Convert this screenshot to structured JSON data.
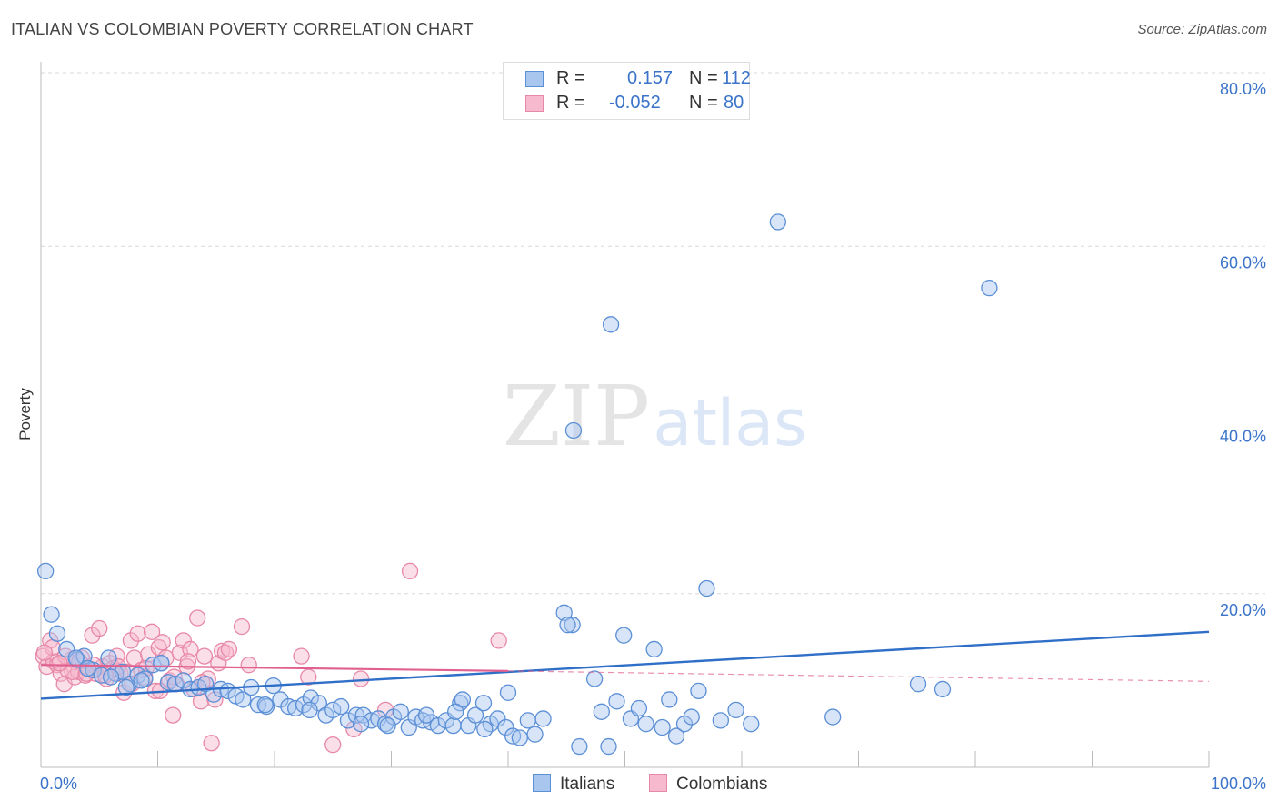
{
  "header": {
    "title": "ITALIAN VS COLOMBIAN POVERTY CORRELATION CHART",
    "source": "Source: ZipAtlas.com"
  },
  "watermark": {
    "zip": "ZIP",
    "atlas": "atlas"
  },
  "legend": {
    "italians": {
      "r_label": "R =",
      "r_value": "0.157",
      "n_label": "N =",
      "n_value": "112"
    },
    "colombians": {
      "r_label": "R =",
      "r_value": "-0.052",
      "n_label": "N =",
      "n_value": "80"
    }
  },
  "colors": {
    "italians_fill": "#a9c6ef",
    "italians_stroke": "#5b8fd6",
    "italians_line": "#2f6fc8",
    "colombians_fill": "#f6b9cd",
    "colombians_stroke": "#e888a8",
    "colombians_line": "#e0618f",
    "axis_label": "#3a73c9",
    "grid": "#d8d8d8"
  },
  "chart_data": {
    "type": "scatter",
    "title": "ITALIAN VS COLOMBIAN POVERTY CORRELATION CHART",
    "xlabel": "",
    "ylabel": "Poverty",
    "xlim": [
      0,
      100
    ],
    "ylim": [
      0,
      80
    ],
    "x_tick_labels": [
      "0.0%",
      "100.0%"
    ],
    "y_ticks": [
      20,
      40,
      60,
      80
    ],
    "y_tick_labels": [
      "20.0%",
      "40.0%",
      "60.0%",
      "80.0%"
    ],
    "grid": true,
    "legend_position": "top-center",
    "series": [
      {
        "name": "Italians",
        "r": 0.157,
        "n": 112,
        "trend": {
          "x": [
            0,
            100
          ],
          "y": [
            7.9,
            15.6
          ]
        },
        "points": [
          [
            0.4,
            22.6
          ],
          [
            0.9,
            17.6
          ],
          [
            1.4,
            15.4
          ],
          [
            2.2,
            13.6
          ],
          [
            3.1,
            12.4
          ],
          [
            3.7,
            12.8
          ],
          [
            4.5,
            11.2
          ],
          [
            5.2,
            10.6
          ],
          [
            5.8,
            12.6
          ],
          [
            6.4,
            10.8
          ],
          [
            7.0,
            11.0
          ],
          [
            7.6,
            9.6
          ],
          [
            8.3,
            10.6
          ],
          [
            8.9,
            10.2
          ],
          [
            9.6,
            11.8
          ],
          [
            10.3,
            12.0
          ],
          [
            10.9,
            9.8
          ],
          [
            11.5,
            9.6
          ],
          [
            12.2,
            10.0
          ],
          [
            12.8,
            9.0
          ],
          [
            13.5,
            9.2
          ],
          [
            14.1,
            9.6
          ],
          [
            14.8,
            8.4
          ],
          [
            15.4,
            9.0
          ],
          [
            16.0,
            8.8
          ],
          [
            16.7,
            8.2
          ],
          [
            17.3,
            7.8
          ],
          [
            18.0,
            9.2
          ],
          [
            18.6,
            7.2
          ],
          [
            19.3,
            7.0
          ],
          [
            19.9,
            9.4
          ],
          [
            20.5,
            7.8
          ],
          [
            21.2,
            7.0
          ],
          [
            21.8,
            6.8
          ],
          [
            22.5,
            7.2
          ],
          [
            23.1,
            8.0
          ],
          [
            23.8,
            7.4
          ],
          [
            24.4,
            6.0
          ],
          [
            25.0,
            6.6
          ],
          [
            25.7,
            7.0
          ],
          [
            26.3,
            5.4
          ],
          [
            27.0,
            6.0
          ],
          [
            27.6,
            6.0
          ],
          [
            28.3,
            5.4
          ],
          [
            28.9,
            5.6
          ],
          [
            29.5,
            5.0
          ],
          [
            30.2,
            5.8
          ],
          [
            30.8,
            6.4
          ],
          [
            31.5,
            4.6
          ],
          [
            32.1,
            5.8
          ],
          [
            32.7,
            5.4
          ],
          [
            33.4,
            5.2
          ],
          [
            34.0,
            4.8
          ],
          [
            34.7,
            5.4
          ],
          [
            35.3,
            4.8
          ],
          [
            35.9,
            7.4
          ],
          [
            36.6,
            4.8
          ],
          [
            37.2,
            6.0
          ],
          [
            37.9,
            7.4
          ],
          [
            38.5,
            5.0
          ],
          [
            39.1,
            5.6
          ],
          [
            39.8,
            4.6
          ],
          [
            40.4,
            3.6
          ],
          [
            41.0,
            3.4
          ],
          [
            41.7,
            5.4
          ],
          [
            42.3,
            3.8
          ],
          [
            43.0,
            5.6
          ],
          [
            10.3,
            12.0
          ],
          [
            8.6,
            10.0
          ],
          [
            4.0,
            11.4
          ],
          [
            3.0,
            12.6
          ],
          [
            6.0,
            10.4
          ],
          [
            7.3,
            9.2
          ],
          [
            36.1,
            7.8
          ],
          [
            40.0,
            8.6
          ],
          [
            45.5,
            16.4
          ],
          [
            46.1,
            2.4
          ],
          [
            47.4,
            10.2
          ],
          [
            48.0,
            6.4
          ],
          [
            48.6,
            2.4
          ],
          [
            49.3,
            7.6
          ],
          [
            50.5,
            5.6
          ],
          [
            51.2,
            6.8
          ],
          [
            51.8,
            5.0
          ],
          [
            52.5,
            13.6
          ],
          [
            53.2,
            4.6
          ],
          [
            53.8,
            7.8
          ],
          [
            54.4,
            3.6
          ],
          [
            55.1,
            5.0
          ],
          [
            55.7,
            5.8
          ],
          [
            56.3,
            8.8
          ],
          [
            57.0,
            20.6
          ],
          [
            58.2,
            5.4
          ],
          [
            59.5,
            6.6
          ],
          [
            60.8,
            5.0
          ],
          [
            44.8,
            17.8
          ],
          [
            45.1,
            16.4
          ],
          [
            49.9,
            15.2
          ],
          [
            48.8,
            51.0
          ],
          [
            45.6,
            38.8
          ],
          [
            63.1,
            62.8
          ],
          [
            81.2,
            55.2
          ],
          [
            67.8,
            5.8
          ],
          [
            75.1,
            9.6
          ],
          [
            77.2,
            9.0
          ],
          [
            23.0,
            6.6
          ],
          [
            33.0,
            6.0
          ],
          [
            19.2,
            7.2
          ],
          [
            27.4,
            5.0
          ],
          [
            38.0,
            4.4
          ],
          [
            29.7,
            4.8
          ],
          [
            35.5,
            6.4
          ]
        ]
      },
      {
        "name": "Colombians",
        "r": -0.052,
        "n": 80,
        "trend": {
          "x": [
            0,
            40
          ],
          "y": [
            11.8,
            11.1
          ]
        },
        "trend_dashed": {
          "x": [
            40,
            100
          ],
          "y": [
            11.1,
            9.9
          ]
        },
        "points": [
          [
            0.2,
            12.8
          ],
          [
            0.5,
            11.6
          ],
          [
            0.8,
            14.6
          ],
          [
            1.1,
            12.2
          ],
          [
            1.4,
            11.8
          ],
          [
            1.7,
            10.8
          ],
          [
            2.0,
            9.6
          ],
          [
            2.3,
            11.2
          ],
          [
            2.6,
            12.4
          ],
          [
            2.9,
            10.4
          ],
          [
            3.2,
            11.0
          ],
          [
            3.5,
            12.6
          ],
          [
            3.8,
            10.6
          ],
          [
            4.1,
            11.4
          ],
          [
            4.4,
            15.2
          ],
          [
            4.7,
            10.8
          ],
          [
            5.0,
            16.0
          ],
          [
            5.3,
            11.6
          ],
          [
            5.6,
            10.2
          ],
          [
            5.9,
            12.0
          ],
          [
            6.2,
            11.4
          ],
          [
            6.5,
            12.8
          ],
          [
            6.8,
            10.8
          ],
          [
            7.1,
            8.6
          ],
          [
            7.4,
            11.0
          ],
          [
            7.7,
            14.6
          ],
          [
            8.0,
            12.6
          ],
          [
            8.3,
            15.4
          ],
          [
            8.6,
            11.2
          ],
          [
            8.9,
            10.4
          ],
          [
            9.2,
            13.0
          ],
          [
            9.5,
            15.6
          ],
          [
            9.8,
            8.8
          ],
          [
            10.1,
            13.8
          ],
          [
            10.4,
            14.4
          ],
          [
            10.7,
            12.6
          ],
          [
            11.0,
            10.0
          ],
          [
            11.3,
            6.0
          ],
          [
            11.6,
            9.6
          ],
          [
            11.9,
            13.2
          ],
          [
            12.2,
            14.6
          ],
          [
            12.5,
            11.6
          ],
          [
            12.8,
            13.6
          ],
          [
            13.1,
            9.0
          ],
          [
            13.4,
            17.2
          ],
          [
            13.7,
            7.6
          ],
          [
            14.0,
            12.8
          ],
          [
            14.3,
            10.2
          ],
          [
            14.6,
            2.8
          ],
          [
            14.9,
            7.8
          ],
          [
            15.2,
            12.0
          ],
          [
            15.5,
            13.4
          ],
          [
            15.8,
            13.2
          ],
          [
            16.1,
            13.6
          ],
          [
            17.2,
            16.2
          ],
          [
            17.8,
            11.8
          ],
          [
            22.3,
            12.8
          ],
          [
            22.9,
            10.4
          ],
          [
            25.0,
            2.6
          ],
          [
            26.8,
            4.4
          ],
          [
            27.4,
            10.2
          ],
          [
            29.5,
            6.6
          ],
          [
            31.6,
            22.6
          ],
          [
            39.2,
            14.6
          ],
          [
            1.0,
            13.8
          ],
          [
            2.1,
            12.8
          ],
          [
            3.3,
            12.2
          ],
          [
            4.5,
            11.8
          ],
          [
            5.5,
            10.6
          ],
          [
            6.6,
            11.6
          ],
          [
            7.8,
            9.6
          ],
          [
            9.0,
            11.4
          ],
          [
            10.2,
            8.8
          ],
          [
            11.4,
            10.4
          ],
          [
            12.6,
            12.2
          ],
          [
            13.8,
            9.8
          ],
          [
            0.3,
            13.2
          ],
          [
            1.6,
            12.0
          ],
          [
            2.7,
            11.0
          ],
          [
            3.9,
            10.8
          ]
        ]
      }
    ]
  }
}
